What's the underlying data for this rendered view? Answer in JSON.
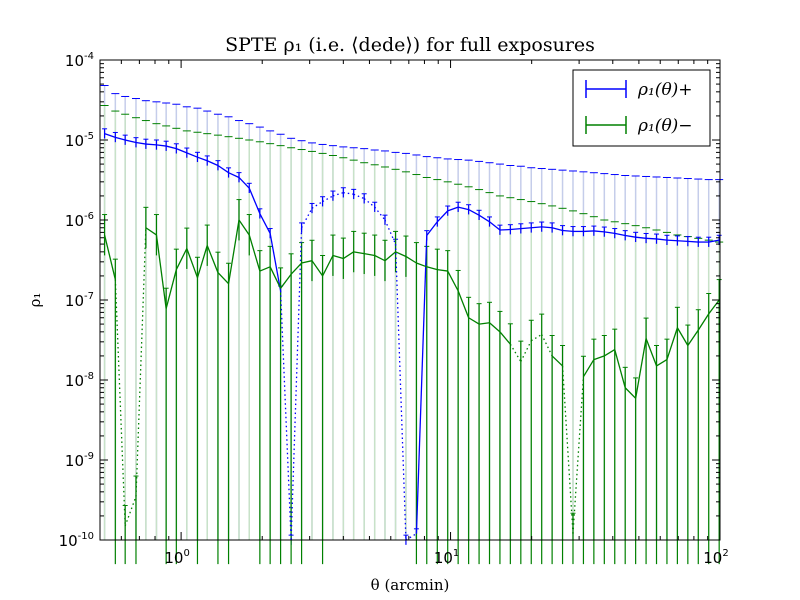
{
  "chart_data": {
    "type": "line",
    "title": "SPTE ρ₁ (i.e. ⟨dede⟩) for full exposures",
    "xlabel": "θ (arcmin)",
    "ylabel": "ρ₁",
    "xscale": "log",
    "yscale": "log",
    "xlim": [
      0.5,
      100
    ],
    "ylim": [
      1e-10,
      0.0001
    ],
    "x_ticks": [
      {
        "base": "10",
        "exp": "0",
        "value": 1
      },
      {
        "base": "10",
        "exp": "1",
        "value": 10
      },
      {
        "base": "10",
        "exp": "2",
        "value": 100
      }
    ],
    "y_ticks": [
      {
        "base": "10",
        "exp": "-10",
        "value": 1e-10
      },
      {
        "base": "10",
        "exp": "-9",
        "value": 1e-09
      },
      {
        "base": "10",
        "exp": "-8",
        "value": 1e-08
      },
      {
        "base": "10",
        "exp": "-7",
        "value": 1e-07
      },
      {
        "base": "10",
        "exp": "-6",
        "value": 1e-06
      },
      {
        "base": "10",
        "exp": "-5",
        "value": 1e-05
      },
      {
        "base": "10",
        "exp": "-4",
        "value": 0.0001
      }
    ],
    "legend_position": "top-right",
    "grid": false,
    "x": [
      0.52,
      0.57,
      0.62,
      0.68,
      0.74,
      0.81,
      0.88,
      0.96,
      1.05,
      1.15,
      1.25,
      1.37,
      1.5,
      1.64,
      1.79,
      1.96,
      2.14,
      2.34,
      2.56,
      2.8,
      3.06,
      3.35,
      3.66,
      4.0,
      4.37,
      4.78,
      5.23,
      5.71,
      6.25,
      6.83,
      7.47,
      8.16,
      8.93,
      9.76,
      10.67,
      11.67,
      12.76,
      13.95,
      15.25,
      16.67,
      18.23,
      19.93,
      21.79,
      23.82,
      26.04,
      28.47,
      31.13,
      34.03,
      37.21,
      40.68,
      44.48,
      48.63,
      53.17,
      58.13,
      63.55,
      69.48,
      75.97,
      83.06,
      90.81,
      99.3
    ],
    "series": [
      {
        "name": "ρ₁(θ)+",
        "color": "#0000ff",
        "y": [
          1.2e-05,
          1.08e-05,
          1e-05,
          9.3e-06,
          8.9e-06,
          8.7e-06,
          8.4e-06,
          7.8e-06,
          6.9e-06,
          6.1e-06,
          5.5e-06,
          4.8e-06,
          3.9e-06,
          3.4e-06,
          2.5e-06,
          1.2e-06,
          6.8e-07,
          1.3e-07,
          -1e-10,
          -8e-07,
          -1.4e-06,
          -1.7e-06,
          -2e-06,
          -2.2e-06,
          -2.1e-06,
          -1.85e-06,
          -1.45e-06,
          -1e-06,
          -5e-07,
          -1e-10,
          1.2e-10,
          6.4e-07,
          9.5e-07,
          1.3e-06,
          1.45e-06,
          1.35e-06,
          1.15e-06,
          9.5e-07,
          7.5e-07,
          7.6e-07,
          7.8e-07,
          8e-07,
          8.2e-07,
          8e-07,
          7.4e-07,
          7.2e-07,
          7.2e-07,
          7.3e-07,
          7.1e-07,
          6.8e-07,
          6.4e-07,
          6.1e-07,
          5.9e-07,
          5.8e-07,
          5.6e-07,
          5.5e-07,
          5.4e-07,
          5.3e-07,
          5.3e-07,
          5.6e-07
        ],
        "err_upper": [
          4.8e-05,
          3.8e-05,
          3.5e-05,
          3.3e-05,
          3.1e-05,
          3e-05,
          2.9e-05,
          2.8e-05,
          2.6e-05,
          2.5e-05,
          2.3e-05,
          2.1e-05,
          1.95e-05,
          1.75e-05,
          1.6e-05,
          1.45e-05,
          1.3e-05,
          1.18e-05,
          1.05e-05,
          9.8e-06,
          9.2e-06,
          8.8e-06,
          8.5e-06,
          8.2e-06,
          8e-06,
          7.8e-06,
          7.5e-06,
          7.3e-06,
          7e-06,
          6.8e-06,
          6.5e-06,
          6.2e-06,
          6e-06,
          5.8e-06,
          5.7e-06,
          5.6e-06,
          5.4e-06,
          5.2e-06,
          5e-06,
          4.8e-06,
          4.7e-06,
          4.5e-06,
          4.4e-06,
          4.3e-06,
          4.2e-06,
          4.1e-06,
          4e-06,
          3.9e-06,
          3.8e-06,
          3.7e-06,
          3.6e-06,
          3.55e-06,
          3.5e-06,
          3.45e-06,
          3.4e-06,
          3.35e-06,
          3.3e-06,
          3.25e-06,
          3.2e-06,
          3.2e-06
        ]
      },
      {
        "name": "ρ₁(θ)−",
        "color": "#008000",
        "y": [
          6.5e-07,
          1.8e-07,
          -1.5e-10,
          -3.5e-10,
          8e-07,
          6.5e-07,
          7.8e-08,
          2.4e-07,
          4.4e-07,
          1.9e-07,
          4.8e-07,
          2.2e-07,
          1.6e-07,
          1e-06,
          6.5e-07,
          2.3e-07,
          2.6e-07,
          1.4e-07,
          2.1e-07,
          2.9e-07,
          3.1e-07,
          2e-07,
          3.6e-07,
          3.3e-07,
          4e-07,
          3.8e-07,
          3.6e-07,
          3.1e-07,
          4e-07,
          3.5e-07,
          2.9e-07,
          2.6e-07,
          2.4e-07,
          2.3e-07,
          1.3e-07,
          6e-08,
          5e-08,
          5.2e-08,
          4e-08,
          2.8e-08,
          -1.7e-08,
          -3.1e-08,
          -3.7e-08,
          2e-08,
          1.5e-08,
          -1.2e-10,
          1.1e-08,
          1.8e-08,
          2e-08,
          2.4e-08,
          8e-09,
          5.9e-09,
          3.3e-08,
          1.5e-08,
          1.8e-08,
          4.5e-08,
          2.7e-08,
          4.2e-08,
          6.7e-08,
          1e-07
        ],
        "err_upper": [
          2.7e-05,
          2.3e-05,
          2.1e-05,
          1.9e-05,
          1.75e-05,
          1.6e-05,
          1.5e-05,
          1.4e-05,
          1.3e-05,
          1.25e-05,
          1.2e-05,
          1.15e-05,
          1.1e-05,
          1.05e-05,
          1e-05,
          9.5e-06,
          9e-06,
          8.5e-06,
          8e-06,
          7.6e-06,
          7.2e-06,
          6.8e-06,
          6.4e-06,
          6e-06,
          5.6e-06,
          5.2e-06,
          4.9e-06,
          4.6e-06,
          4.3e-06,
          4e-06,
          3.7e-06,
          3.4e-06,
          3.2e-06,
          3e-06,
          2.8e-06,
          2.6e-06,
          2.4e-06,
          2.2e-06,
          2e-06,
          1.9e-06,
          1.8e-06,
          1.7e-06,
          1.6e-06,
          1.5e-06,
          1.4e-06,
          1.3e-06,
          1.2e-06,
          1.1e-06,
          1e-06,
          9.5e-07,
          9e-07,
          8.5e-07,
          8e-07,
          7.5e-07,
          7e-07,
          6.5e-07,
          6.2e-07,
          5.9e-07,
          5.6e-07,
          5.3e-07
        ]
      }
    ]
  }
}
